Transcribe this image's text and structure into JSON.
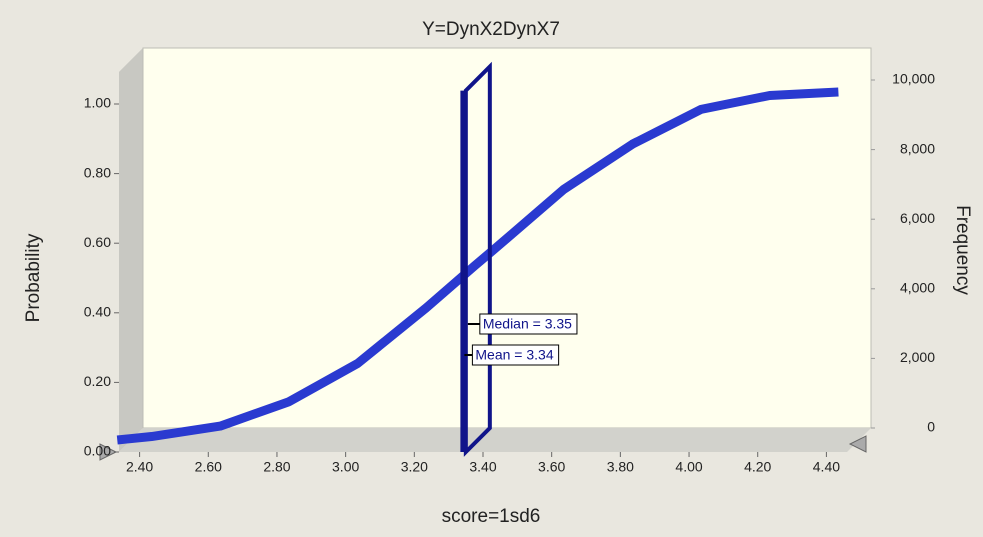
{
  "chart_data": {
    "type": "line",
    "title": "Y=DynX2DynX7",
    "x_label": "score=1sd6",
    "y_label": "Probability",
    "y2_label": "Frequency",
    "x": [
      2.3,
      2.4,
      2.6,
      2.8,
      3.0,
      3.2,
      3.34,
      3.4,
      3.6,
      3.8,
      4.0,
      4.2,
      4.4
    ],
    "series": [
      {
        "name": "Probability",
        "color": "#2a3ad0",
        "values": [
          0.0,
          0.01,
          0.04,
          0.11,
          0.22,
          0.38,
          0.5,
          0.55,
          0.72,
          0.85,
          0.95,
          0.99,
          1.0
        ]
      }
    ],
    "xlim": [
      2.34,
      4.46
    ],
    "ylim": [
      0,
      1.05
    ],
    "y2lim": [
      0,
      10500
    ],
    "xticks": [
      {
        "value": 2.4,
        "label": "2.40"
      },
      {
        "value": 2.6,
        "label": "2.60"
      },
      {
        "value": 2.8,
        "label": "2.80"
      },
      {
        "value": 3.0,
        "label": "3.00"
      },
      {
        "value": 3.2,
        "label": "3.20"
      },
      {
        "value": 3.4,
        "label": "3.40"
      },
      {
        "value": 3.6,
        "label": "3.60"
      },
      {
        "value": 3.8,
        "label": "3.80"
      },
      {
        "value": 4.0,
        "label": "4.00"
      },
      {
        "value": 4.2,
        "label": "4.20"
      },
      {
        "value": 4.4,
        "label": "4.40"
      }
    ],
    "yticks": [
      {
        "value": 0,
        "label": "0.00"
      },
      {
        "value": 0.2,
        "label": "0.20"
      },
      {
        "value": 0.4,
        "label": "0.40"
      },
      {
        "value": 0.6,
        "label": "0.60"
      },
      {
        "value": 0.8,
        "label": "0.80"
      },
      {
        "value": 1.0,
        "label": "1.00"
      }
    ],
    "y2ticks": [
      0,
      {
        "value": 2000,
        "label": "2,000"
      },
      {
        "value": 4000,
        "label": "4,000"
      },
      {
        "value": 6000,
        "label": "6,000"
      },
      {
        "value": 8000,
        "label": "8,000"
      },
      {
        "value": 10000,
        "label": "10,000"
      }
    ],
    "markers": [
      {
        "label": "Median = 3.35",
        "value": 3.35
      },
      {
        "label": "Mean = 3.34",
        "value": 3.34
      }
    ],
    "marker_color": "#10148a"
  }
}
